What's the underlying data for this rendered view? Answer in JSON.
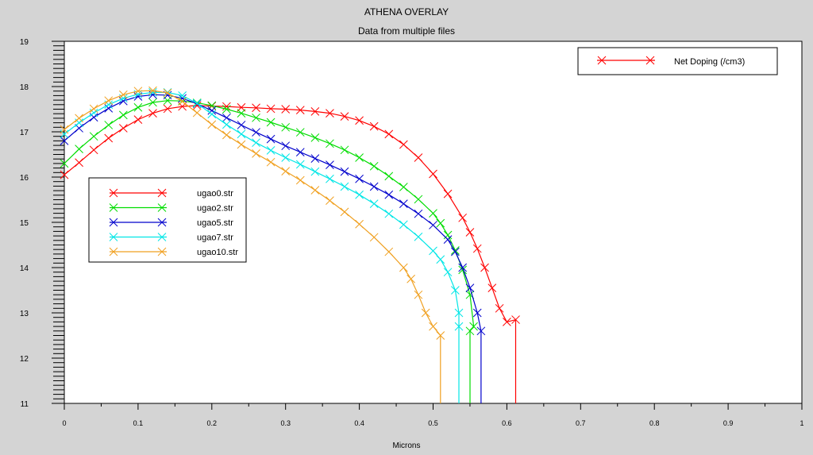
{
  "chart_data": {
    "type": "line",
    "title": "ATHENA OVERLAY",
    "subtitle": "Data from multiple files",
    "xlabel": "Microns",
    "ylabel": "",
    "xlim": [
      0,
      1
    ],
    "ylim": [
      11,
      19
    ],
    "x_ticks": [
      "0",
      "0.1",
      "0.2",
      "0.3",
      "0.4",
      "0.5",
      "0.6",
      "0.7",
      "0.8",
      "0.9",
      "1"
    ],
    "y_ticks": [
      "11",
      "12",
      "13",
      "14",
      "15",
      "16",
      "17",
      "18",
      "19"
    ],
    "quantity_legend": {
      "label": "Net Doping (/cm3)",
      "color": "#ff0000"
    },
    "series": [
      {
        "name": "ugao0.str",
        "color": "#ff0000",
        "points": [
          [
            0,
            16.05
          ],
          [
            0.02,
            16.32
          ],
          [
            0.04,
            16.6
          ],
          [
            0.06,
            16.86
          ],
          [
            0.08,
            17.08
          ],
          [
            0.1,
            17.27
          ],
          [
            0.12,
            17.41
          ],
          [
            0.14,
            17.51
          ],
          [
            0.16,
            17.56
          ],
          [
            0.18,
            17.58
          ],
          [
            0.2,
            17.57
          ],
          [
            0.22,
            17.56
          ],
          [
            0.24,
            17.54
          ],
          [
            0.26,
            17.53
          ],
          [
            0.28,
            17.51
          ],
          [
            0.3,
            17.5
          ],
          [
            0.32,
            17.48
          ],
          [
            0.34,
            17.45
          ],
          [
            0.36,
            17.41
          ],
          [
            0.38,
            17.34
          ],
          [
            0.4,
            17.25
          ],
          [
            0.42,
            17.12
          ],
          [
            0.44,
            16.95
          ],
          [
            0.46,
            16.72
          ],
          [
            0.48,
            16.43
          ],
          [
            0.5,
            16.07
          ],
          [
            0.52,
            15.63
          ],
          [
            0.54,
            15.1
          ],
          [
            0.55,
            14.78
          ],
          [
            0.56,
            14.42
          ],
          [
            0.57,
            14.0
          ],
          [
            0.58,
            13.55
          ],
          [
            0.59,
            13.1
          ],
          [
            0.6,
            12.8
          ],
          [
            0.612,
            12.85
          ],
          [
            0.612,
            11.0
          ]
        ]
      },
      {
        "name": "ugao2.str",
        "color": "#00dd00",
        "points": [
          [
            0,
            16.3
          ],
          [
            0.02,
            16.62
          ],
          [
            0.04,
            16.9
          ],
          [
            0.06,
            17.15
          ],
          [
            0.08,
            17.37
          ],
          [
            0.1,
            17.54
          ],
          [
            0.12,
            17.65
          ],
          [
            0.14,
            17.69
          ],
          [
            0.16,
            17.68
          ],
          [
            0.18,
            17.64
          ],
          [
            0.2,
            17.58
          ],
          [
            0.22,
            17.5
          ],
          [
            0.24,
            17.41
          ],
          [
            0.26,
            17.31
          ],
          [
            0.28,
            17.21
          ],
          [
            0.3,
            17.1
          ],
          [
            0.32,
            16.99
          ],
          [
            0.34,
            16.87
          ],
          [
            0.36,
            16.74
          ],
          [
            0.38,
            16.6
          ],
          [
            0.4,
            16.43
          ],
          [
            0.42,
            16.24
          ],
          [
            0.44,
            16.02
          ],
          [
            0.46,
            15.78
          ],
          [
            0.48,
            15.51
          ],
          [
            0.5,
            15.2
          ],
          [
            0.51,
            14.98
          ],
          [
            0.52,
            14.72
          ],
          [
            0.53,
            14.38
          ],
          [
            0.54,
            13.95
          ],
          [
            0.55,
            13.4
          ],
          [
            0.555,
            12.7
          ],
          [
            0.55,
            12.6
          ],
          [
            0.55,
            11.0
          ]
        ]
      },
      {
        "name": "ugao5.str",
        "color": "#0000cc",
        "points": [
          [
            0,
            16.8
          ],
          [
            0.02,
            17.08
          ],
          [
            0.04,
            17.32
          ],
          [
            0.06,
            17.52
          ],
          [
            0.08,
            17.68
          ],
          [
            0.1,
            17.78
          ],
          [
            0.12,
            17.82
          ],
          [
            0.14,
            17.81
          ],
          [
            0.16,
            17.74
          ],
          [
            0.18,
            17.62
          ],
          [
            0.2,
            17.47
          ],
          [
            0.22,
            17.31
          ],
          [
            0.24,
            17.15
          ],
          [
            0.26,
            16.99
          ],
          [
            0.28,
            16.84
          ],
          [
            0.3,
            16.69
          ],
          [
            0.32,
            16.55
          ],
          [
            0.34,
            16.41
          ],
          [
            0.36,
            16.27
          ],
          [
            0.38,
            16.12
          ],
          [
            0.4,
            15.96
          ],
          [
            0.42,
            15.79
          ],
          [
            0.44,
            15.61
          ],
          [
            0.46,
            15.41
          ],
          [
            0.48,
            15.19
          ],
          [
            0.5,
            14.94
          ],
          [
            0.52,
            14.62
          ],
          [
            0.53,
            14.35
          ],
          [
            0.54,
            14.0
          ],
          [
            0.55,
            13.55
          ],
          [
            0.56,
            13.0
          ],
          [
            0.565,
            12.6
          ],
          [
            0.565,
            11.0
          ]
        ]
      },
      {
        "name": "ugao7.str",
        "color": "#00e6e6",
        "points": [
          [
            0,
            16.95
          ],
          [
            0.02,
            17.2
          ],
          [
            0.04,
            17.42
          ],
          [
            0.06,
            17.6
          ],
          [
            0.08,
            17.74
          ],
          [
            0.1,
            17.83
          ],
          [
            0.12,
            17.87
          ],
          [
            0.14,
            17.87
          ],
          [
            0.16,
            17.8
          ],
          [
            0.18,
            17.63
          ],
          [
            0.2,
            17.39
          ],
          [
            0.22,
            17.16
          ],
          [
            0.24,
            16.95
          ],
          [
            0.26,
            16.76
          ],
          [
            0.28,
            16.59
          ],
          [
            0.3,
            16.43
          ],
          [
            0.32,
            16.28
          ],
          [
            0.34,
            16.12
          ],
          [
            0.36,
            15.96
          ],
          [
            0.38,
            15.79
          ],
          [
            0.4,
            15.61
          ],
          [
            0.42,
            15.41
          ],
          [
            0.44,
            15.19
          ],
          [
            0.46,
            14.95
          ],
          [
            0.48,
            14.68
          ],
          [
            0.5,
            14.37
          ],
          [
            0.51,
            14.18
          ],
          [
            0.52,
            13.9
          ],
          [
            0.53,
            13.5
          ],
          [
            0.535,
            13.0
          ],
          [
            0.535,
            12.7
          ],
          [
            0.535,
            11.0
          ]
        ]
      },
      {
        "name": "ugao10.str",
        "color": "#f0a020",
        "points": [
          [
            0,
            17.05
          ],
          [
            0.02,
            17.3
          ],
          [
            0.04,
            17.51
          ],
          [
            0.06,
            17.69
          ],
          [
            0.08,
            17.82
          ],
          [
            0.1,
            17.9
          ],
          [
            0.12,
            17.91
          ],
          [
            0.14,
            17.86
          ],
          [
            0.16,
            17.67
          ],
          [
            0.18,
            17.42
          ],
          [
            0.2,
            17.16
          ],
          [
            0.22,
            16.93
          ],
          [
            0.24,
            16.72
          ],
          [
            0.26,
            16.52
          ],
          [
            0.28,
            16.33
          ],
          [
            0.3,
            16.13
          ],
          [
            0.32,
            15.93
          ],
          [
            0.34,
            15.71
          ],
          [
            0.36,
            15.48
          ],
          [
            0.38,
            15.23
          ],
          [
            0.4,
            14.96
          ],
          [
            0.42,
            14.67
          ],
          [
            0.44,
            14.35
          ],
          [
            0.46,
            14.0
          ],
          [
            0.47,
            13.75
          ],
          [
            0.48,
            13.4
          ],
          [
            0.49,
            13.0
          ],
          [
            0.5,
            12.7
          ],
          [
            0.51,
            12.5
          ],
          [
            0.51,
            11.0
          ]
        ]
      }
    ]
  }
}
